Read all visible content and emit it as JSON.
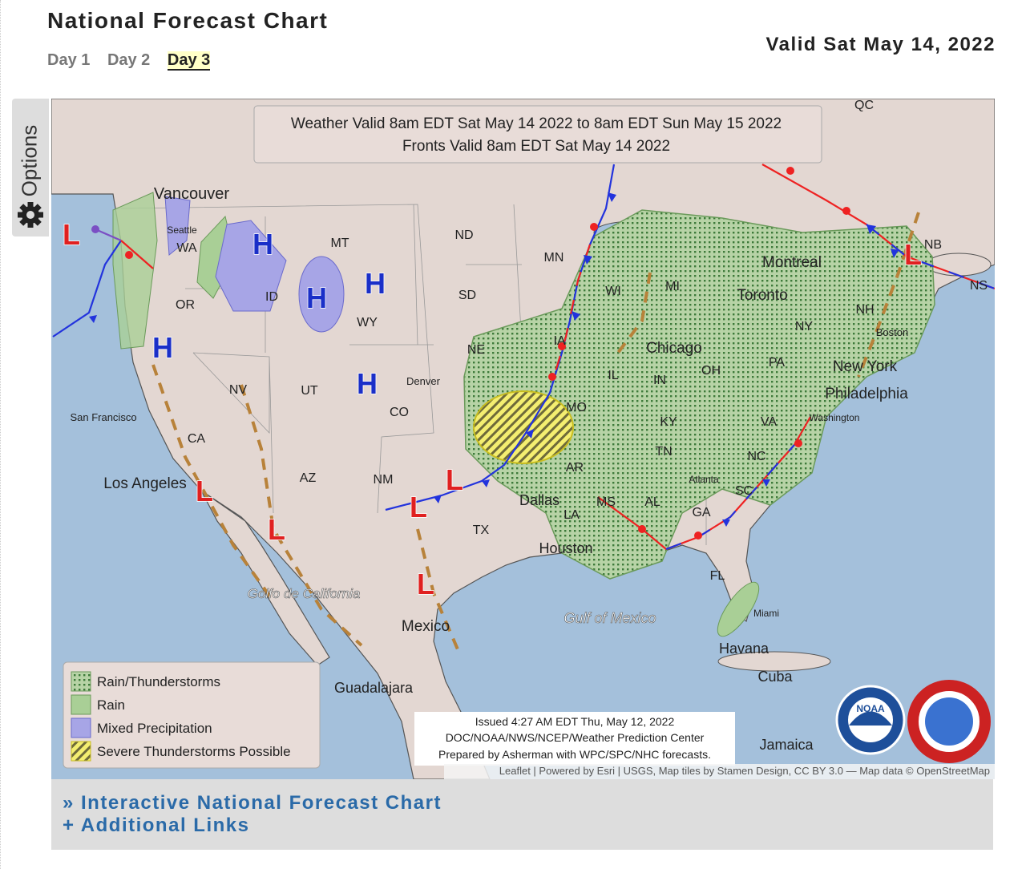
{
  "header": {
    "title": "National Forecast Chart",
    "tabs": [
      "Day 1",
      "Day 2",
      "Day 3"
    ],
    "valid": "Valid Sat May 14, 2022"
  },
  "options_tab": "Options",
  "map": {
    "info": [
      "Weather Valid 8am EDT Sat May 14 2022 to 8am EDT Sun May 15 2022",
      "Fronts Valid 8am EDT Sat May 14 2022"
    ],
    "pressure_centers": [
      "L",
      "H",
      "H",
      "H",
      "H",
      "H",
      "L",
      "L",
      "L",
      "L",
      "L",
      "L"
    ],
    "places": [
      "Vancouver",
      "Seattle",
      "WA",
      "OR",
      "MT",
      "ID",
      "WY",
      "ND",
      "SD",
      "MN",
      "NE",
      "NV",
      "UT",
      "CO",
      "CA",
      "AZ",
      "NM",
      "TX",
      "San Francisco",
      "Los Angeles",
      "Denver",
      "Dallas",
      "Houston",
      "Chicago",
      "Toronto",
      "Montreal",
      "New York",
      "Philadelphia",
      "Washington",
      "Boston",
      "Atlanta",
      "Miami",
      "Havana",
      "Cuba",
      "Jamaica",
      "Mexico",
      "Guadalajara",
      "Golfo de California",
      "Gulf of Mexico",
      "QC",
      "NB",
      "NS",
      "NH",
      "NY",
      "PA",
      "OH",
      "IN",
      "IL",
      "KY",
      "TN",
      "NC",
      "SC",
      "VA",
      "GA",
      "AL",
      "MS",
      "LA",
      "AR",
      "MO",
      "IA",
      "WI",
      "MI",
      "FL"
    ],
    "legend": [
      "Rain/Thunderstorms",
      "Rain",
      "Mixed Precipitation",
      "Severe Thunderstorms Possible"
    ],
    "issued": [
      "Issued 4:27 AM EDT Thu, May 12, 2022",
      "DOC/NOAA/NWS/NCEP/Weather Prediction Center",
      "Prepared by Asherman with WPC/SPC/NHC forecasts."
    ],
    "attribution": "Leaflet | Powered by Esri | USGS, Map tiles by Stamen Design, CC BY 3.0 — Map data © OpenStreetMap",
    "logo": "NOAA"
  },
  "links": [
    "» Interactive National Forecast Chart",
    "+ Additional Links"
  ]
}
